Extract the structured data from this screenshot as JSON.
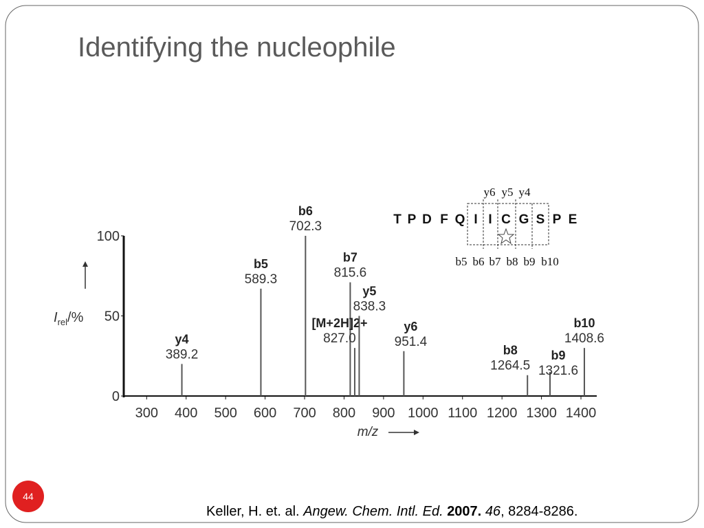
{
  "slide": {
    "title": "Identifying the nucleophile",
    "page_number": "44",
    "citation": {
      "authors": "Keller, H. et. al.",
      "journal": "Angew. Chem. Intl. Ed.",
      "year": "2007.",
      "volume": "46",
      "pages": ", 8284-8286."
    }
  },
  "sequence": {
    "residues": [
      "T",
      "P",
      "D",
      "F",
      "Q",
      "I",
      "I",
      "C",
      "G",
      "S",
      "P",
      "E"
    ],
    "y_ions": [
      "y6",
      "y5",
      "y4"
    ],
    "b_ions": [
      "b5",
      "b6",
      "b7",
      "b8",
      "b9",
      "b10"
    ]
  },
  "chart_data": {
    "type": "bar",
    "xlabel": "m/z",
    "ylabel": {
      "symbol": "I",
      "subscript": "rel",
      "unit": "/%"
    },
    "ions": [
      "y4",
      "b5",
      "b6",
      "b7",
      "[M+2H]2+",
      "y5",
      "y6",
      "b8",
      "b9",
      "b10"
    ],
    "x": [
      389.2,
      589.3,
      702.3,
      815.6,
      827.0,
      838.3,
      951.4,
      1264.5,
      1321.6,
      1408.6
    ],
    "x_labels": [
      "389.2",
      "589.3",
      "702.3",
      "815.6",
      "827.0",
      "838.3",
      "951.4",
      "1264.5",
      "1321.6",
      "1408.6"
    ],
    "values": [
      20,
      67,
      100,
      71,
      30,
      50,
      28,
      13,
      15,
      30
    ],
    "color": "#555555",
    "xlim": [
      242,
      1440
    ],
    "ylim": [
      0,
      100
    ],
    "xticks": [
      300,
      400,
      500,
      600,
      700,
      800,
      900,
      1000,
      1100,
      1200,
      1300,
      1400
    ],
    "yticks": [
      0,
      50,
      100
    ]
  }
}
